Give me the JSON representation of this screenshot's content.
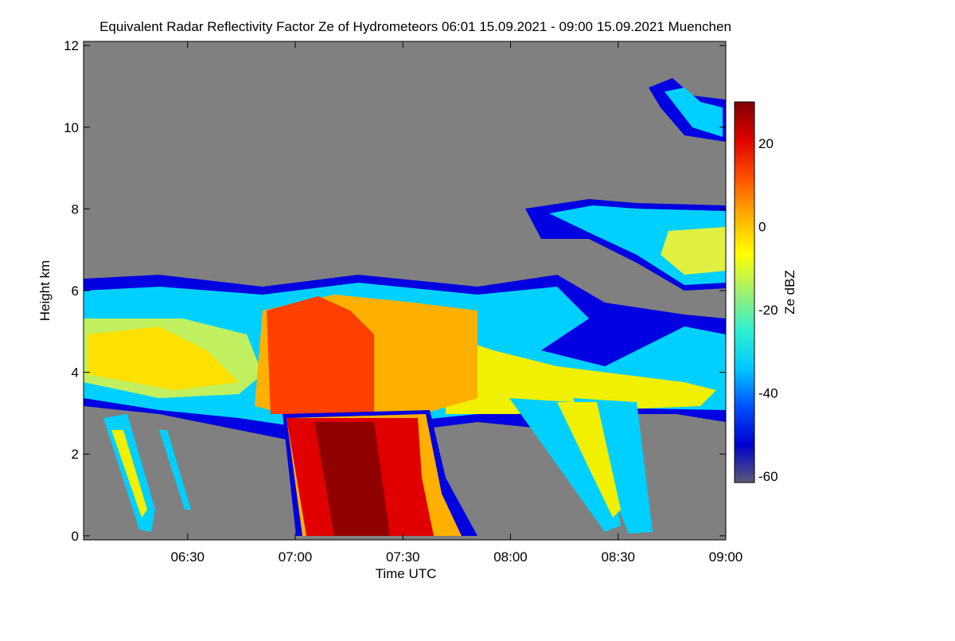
{
  "chart_data": {
    "type": "heatmap",
    "title": "Equivalent Radar Reflectivity Factor Ze of Hydrometeors   06:01 15.09.2021 - 09:00 15.09.2021 Muenchen",
    "x_label": "Time UTC",
    "y_label": "Height km",
    "xlim": [
      361,
      540
    ],
    "xticks": [
      {
        "value": 390,
        "label": "06:30"
      },
      {
        "value": 420,
        "label": "07:00"
      },
      {
        "value": 450,
        "label": "07:30"
      },
      {
        "value": 480,
        "label": "08:00"
      },
      {
        "value": 510,
        "label": "08:30"
      },
      {
        "value": 540,
        "label": "09:00"
      }
    ],
    "ylim": [
      -0.1,
      12.1
    ],
    "yticks": [
      0,
      2,
      4,
      6,
      8,
      10,
      12
    ],
    "colorbar": {
      "label": "Ze dBZ",
      "lim": [
        -61.5,
        30
      ],
      "ticks": [
        -60,
        -40,
        -20,
        0,
        20
      ],
      "colormap": [
        "#5a5a78",
        "#0000d0",
        "#0050ff",
        "#00c8ff",
        "#30f0d0",
        "#a0f070",
        "#ffff00",
        "#ffb000",
        "#ff5000",
        "#e00000",
        "#800000"
      ]
    },
    "background_color": "#808080"
  }
}
